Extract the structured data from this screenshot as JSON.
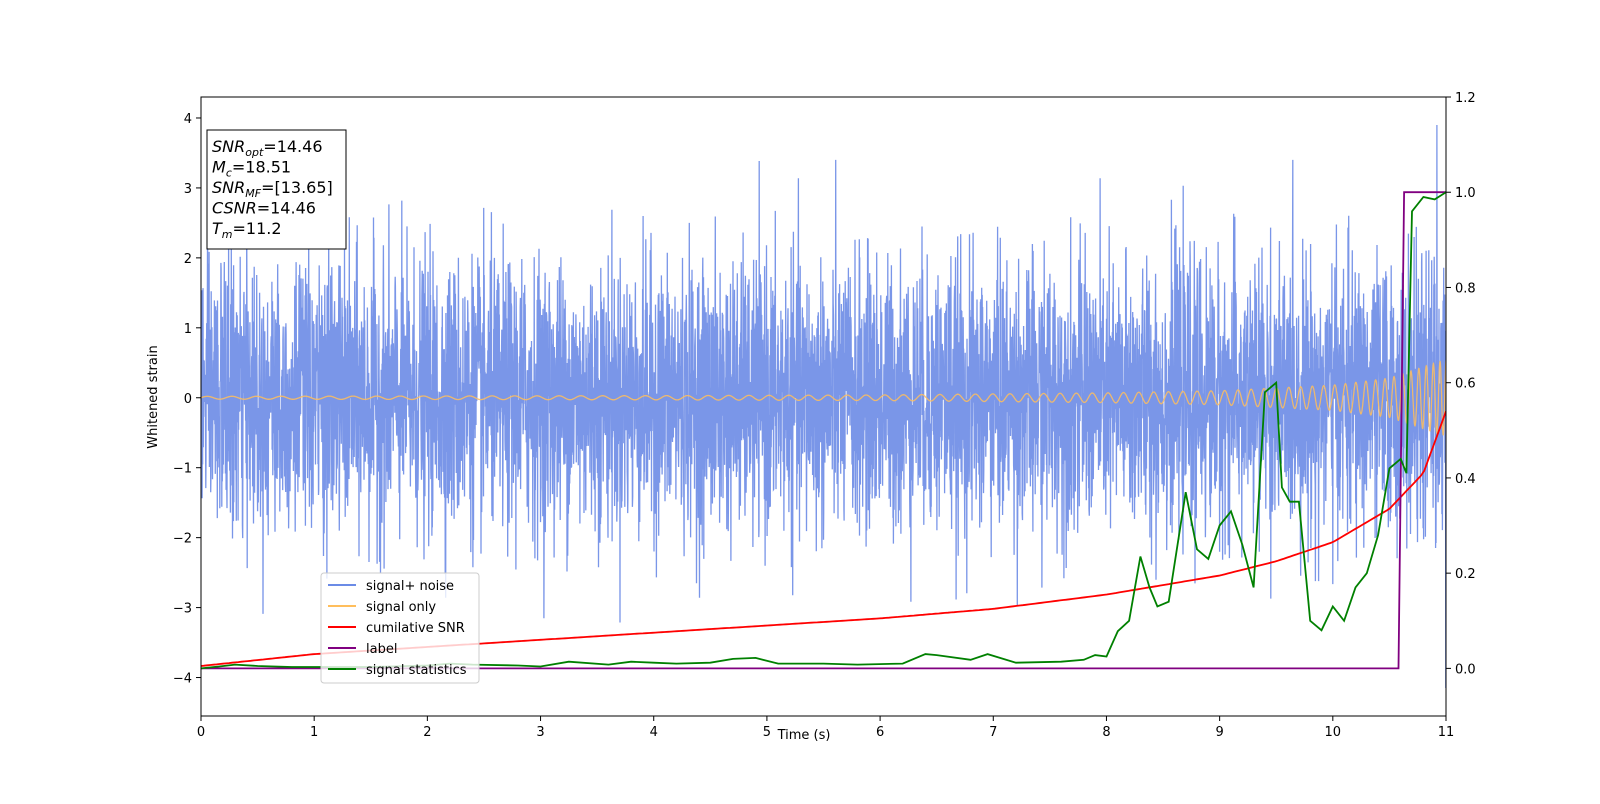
{
  "chart_data": {
    "type": "line",
    "xlabel": "Time (s)",
    "ylabel": "Whitened strain",
    "xlim": [
      0,
      11
    ],
    "ylim": [
      -4.55,
      4.3
    ],
    "y2lim": [
      -0.1,
      1.2
    ],
    "xticks": [
      0,
      1,
      2,
      3,
      4,
      5,
      6,
      7,
      8,
      9,
      10,
      11
    ],
    "yticks": [
      -4,
      -3,
      -2,
      -1,
      0,
      1,
      2,
      3,
      4
    ],
    "y2ticks": [
      0.0,
      0.2,
      0.4,
      0.6,
      0.8,
      1.0,
      1.2
    ],
    "grid": false,
    "legend_position": "lower-left",
    "colors": {
      "signal_noise": "#6b8be6",
      "signal_only": "#ffbe5c",
      "cumulative_snr": "#ff0000",
      "label": "#800080",
      "signal_statistics": "#008000"
    },
    "annotation": [
      {
        "base": "SNR",
        "sub": "opt",
        "value": "=14.46"
      },
      {
        "base": "M",
        "sub": "c",
        "value": "=18.51"
      },
      {
        "base": "SNR",
        "sub": "MF",
        "value": "=[13.65]"
      },
      {
        "base": "CSNR",
        "sub": "",
        "value": "=14.46"
      },
      {
        "base": "T",
        "sub": "m",
        "value": "=11.2"
      }
    ],
    "series": [
      {
        "name": "signal+ noise",
        "axis": "left",
        "style": "noise",
        "amplitude_std": 0.95,
        "peak": [
          -4.15,
          3.9
        ]
      },
      {
        "name": "signal only",
        "axis": "left",
        "style": "chirp",
        "x": [
          0,
          2,
          4,
          6,
          8,
          9,
          10,
          10.5,
          11
        ],
        "envelope": [
          0.02,
          0.025,
          0.03,
          0.04,
          0.07,
          0.1,
          0.18,
          0.28,
          0.55
        ]
      },
      {
        "name": "cumilative SNR",
        "axis": "right",
        "x": [
          0,
          1,
          2,
          3,
          4,
          5,
          6,
          7,
          8,
          9,
          9.5,
          10,
          10.5,
          10.8,
          11
        ],
        "values": [
          0.005,
          0.03,
          0.045,
          0.06,
          0.075,
          0.09,
          0.105,
          0.125,
          0.155,
          0.195,
          0.225,
          0.265,
          0.335,
          0.41,
          0.54
        ]
      },
      {
        "name": "label",
        "axis": "right",
        "x": [
          0,
          10.58,
          10.63,
          11
        ],
        "values": [
          0.0,
          0.0,
          1.0,
          1.0
        ]
      },
      {
        "name": "signal statistics",
        "axis": "right",
        "x": [
          0,
          0.2,
          0.3,
          0.5,
          0.8,
          1.0,
          1.5,
          2.0,
          2.2,
          2.4,
          2.8,
          3.0,
          3.25,
          3.6,
          3.8,
          4.0,
          4.2,
          4.5,
          4.7,
          4.9,
          5.1,
          5.5,
          5.8,
          6.2,
          6.4,
          6.5,
          6.8,
          6.95,
          7.2,
          7.6,
          7.8,
          7.9,
          8.0,
          8.1,
          8.2,
          8.3,
          8.38,
          8.45,
          8.55,
          8.7,
          8.8,
          8.9,
          9.0,
          9.1,
          9.2,
          9.3,
          9.4,
          9.5,
          9.55,
          9.62,
          9.7,
          9.8,
          9.9,
          10.0,
          10.1,
          10.2,
          10.3,
          10.4,
          10.5,
          10.6,
          10.65,
          10.7,
          10.8,
          10.9,
          11.0
        ],
        "values": [
          0.0,
          0.005,
          0.008,
          0.005,
          0.003,
          0.003,
          0.003,
          0.006,
          0.01,
          0.008,
          0.006,
          0.004,
          0.014,
          0.008,
          0.014,
          0.012,
          0.01,
          0.012,
          0.02,
          0.022,
          0.01,
          0.01,
          0.008,
          0.01,
          0.03,
          0.028,
          0.018,
          0.03,
          0.012,
          0.014,
          0.018,
          0.028,
          0.025,
          0.078,
          0.1,
          0.235,
          0.17,
          0.13,
          0.14,
          0.37,
          0.25,
          0.23,
          0.3,
          0.33,
          0.26,
          0.17,
          0.58,
          0.6,
          0.38,
          0.35,
          0.35,
          0.1,
          0.08,
          0.13,
          0.1,
          0.17,
          0.2,
          0.28,
          0.42,
          0.44,
          0.41,
          0.96,
          0.99,
          0.985,
          1.0
        ]
      }
    ]
  }
}
